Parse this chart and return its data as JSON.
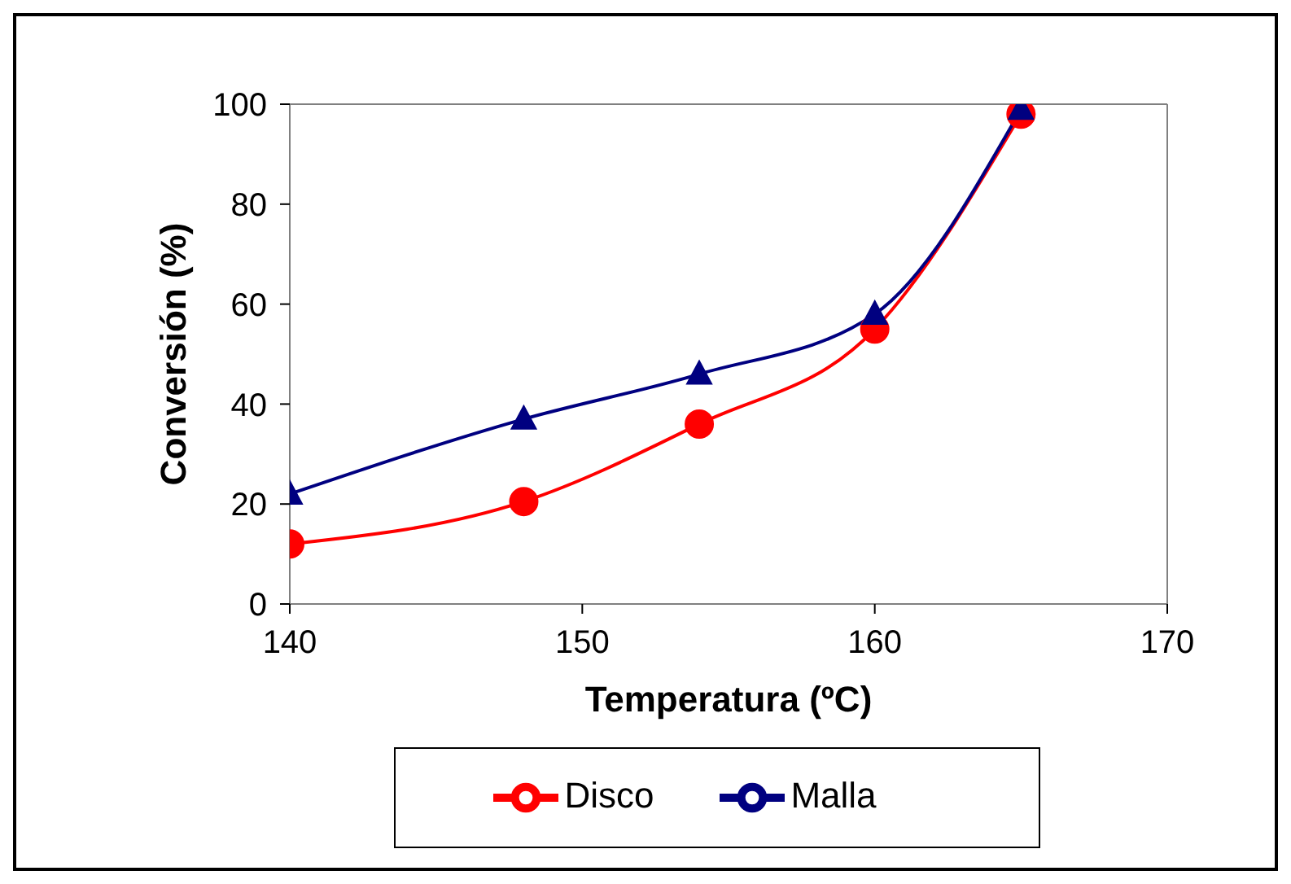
{
  "chart_data": {
    "type": "line",
    "xlabel": "Temperatura (ºC)",
    "ylabel": "Conversión (%)",
    "x": [
      140,
      148,
      154,
      160,
      165
    ],
    "series": [
      {
        "name": "Disco",
        "color": "#ff0000",
        "marker": "circle",
        "values": [
          12,
          20.5,
          36,
          55,
          98
        ]
      },
      {
        "name": "Malla",
        "color": "#000080",
        "marker": "triangle",
        "values": [
          22,
          37,
          46,
          58,
          99
        ]
      }
    ],
    "xlim": [
      140,
      170
    ],
    "xticks": [
      140,
      150,
      160,
      170
    ],
    "ylim": [
      0,
      100
    ],
    "yticks": [
      0,
      20,
      40,
      60,
      80,
      100
    ],
    "legend": "bottom",
    "line_style": "solid"
  }
}
